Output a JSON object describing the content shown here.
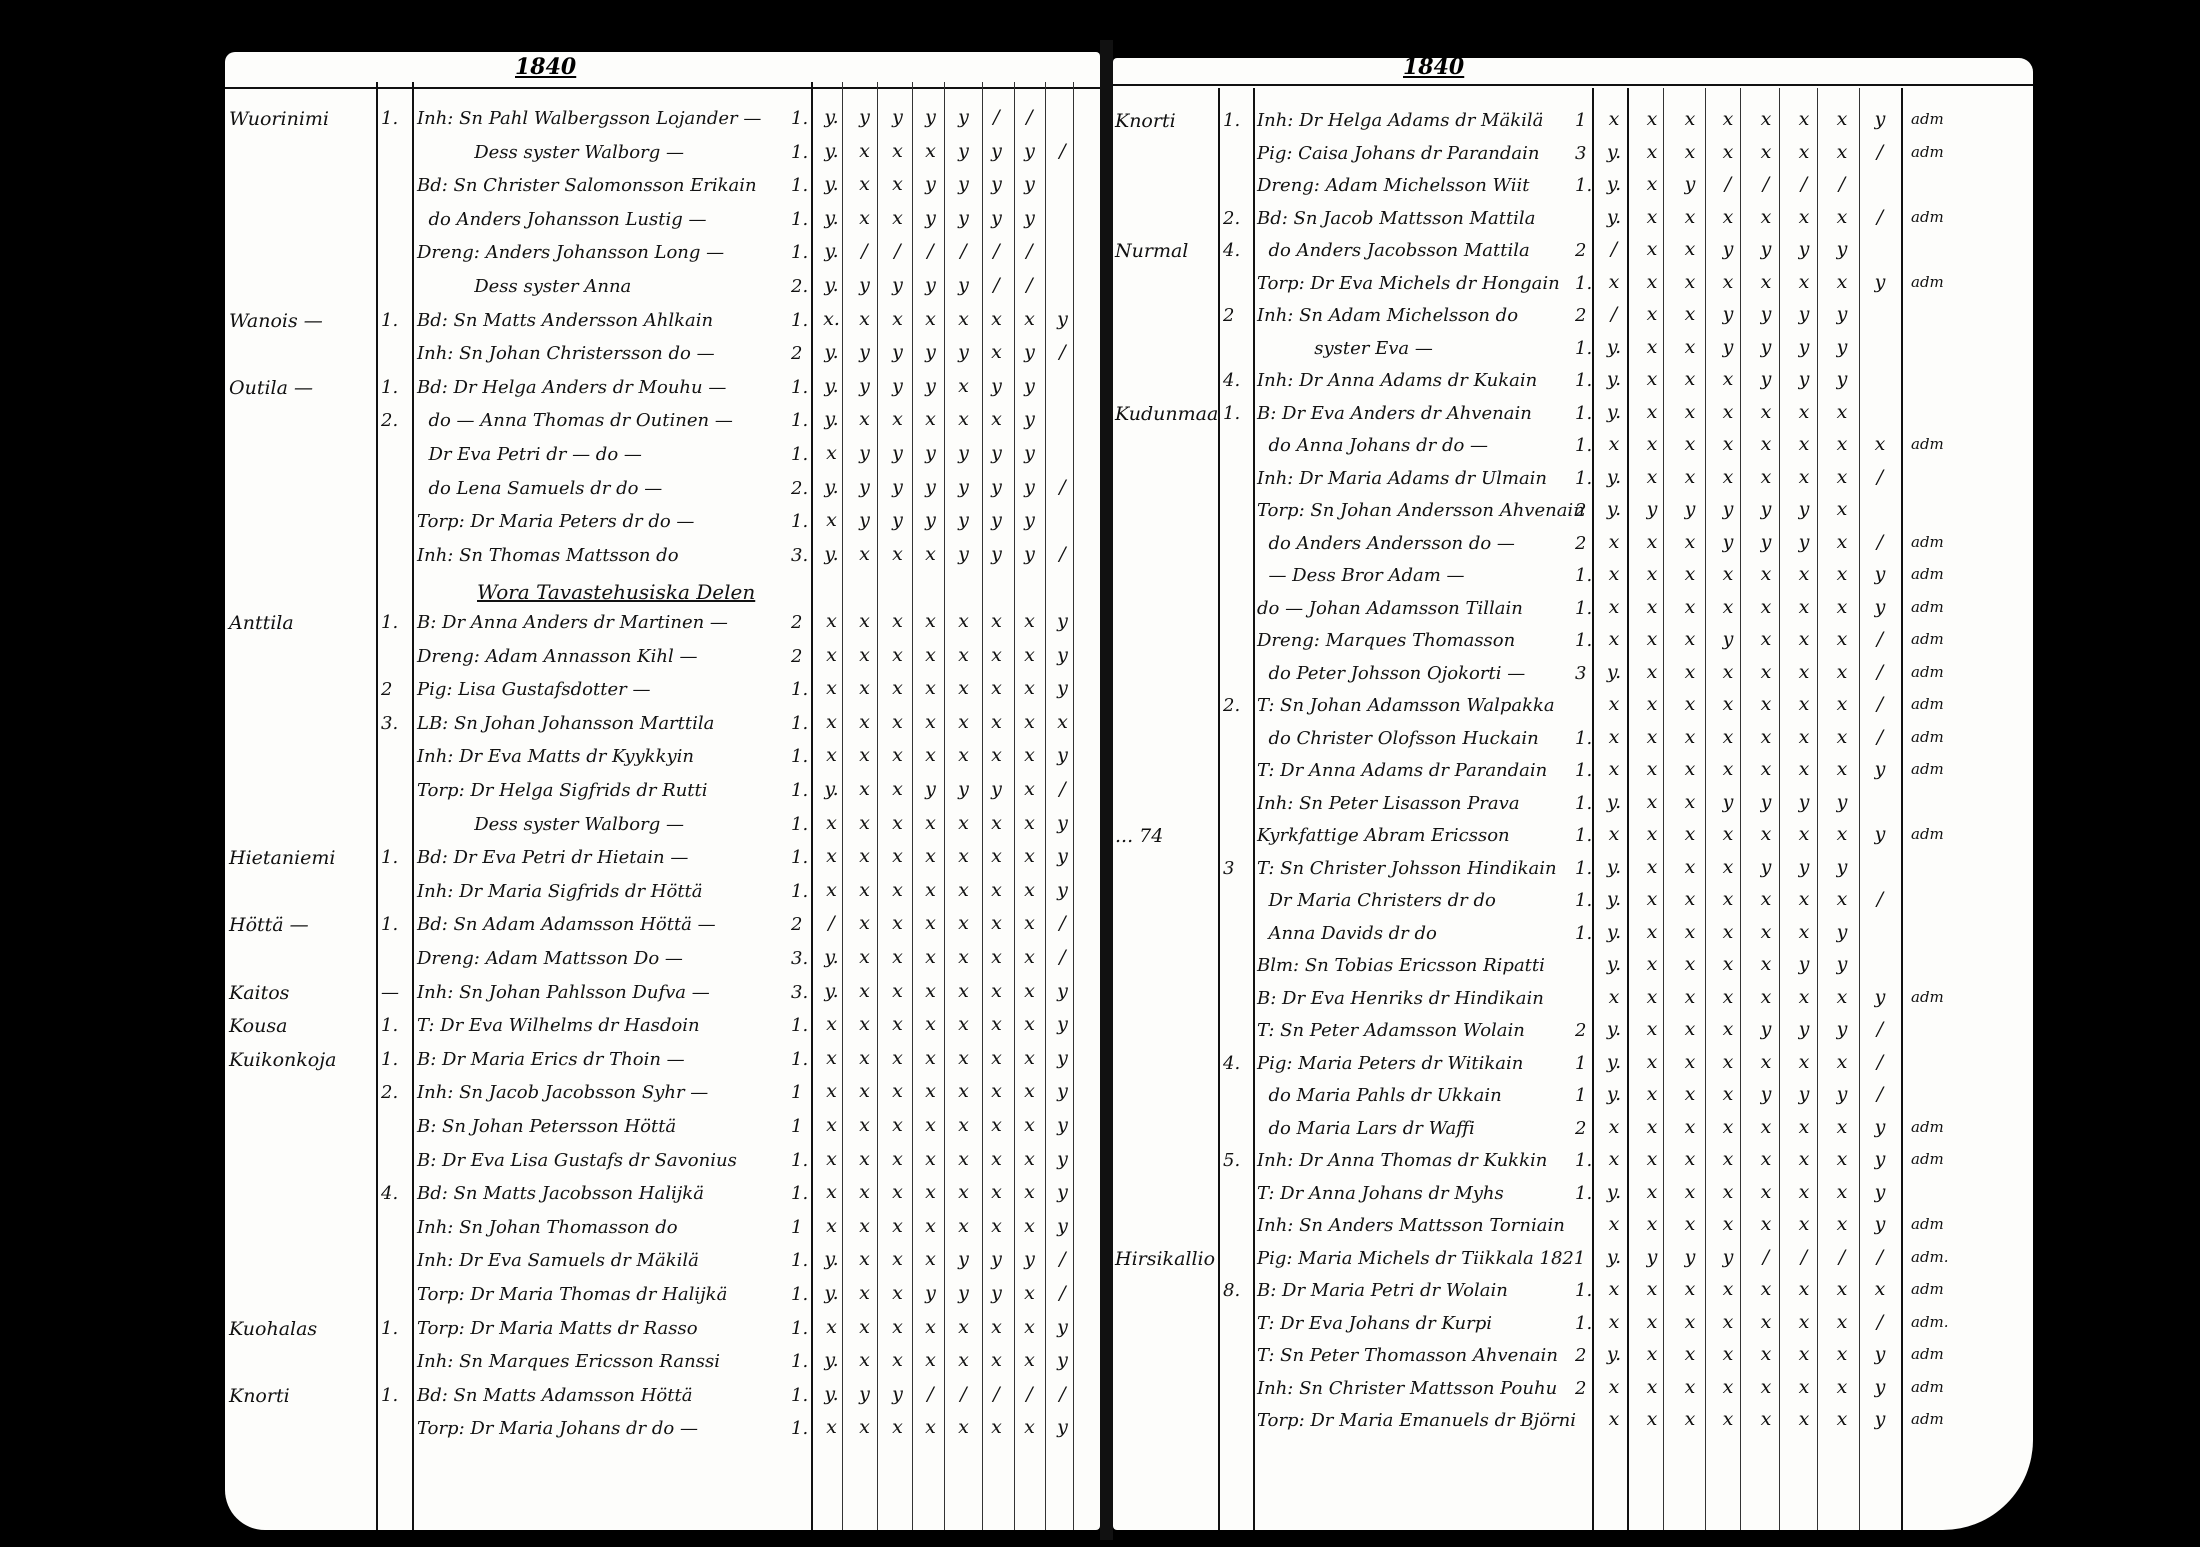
{
  "left_page": {
    "year": "1840",
    "rows": [
      {
        "place": "Wuorinimi",
        "no": "1.",
        "entry": "Inh: Sn Pahl Walbergsson Lojander —",
        "count": "1.",
        "marks": "y. y y y y / /"
      },
      {
        "place": "",
        "no": "",
        "entry": "          Dess syster Walborg —",
        "count": "1.",
        "marks": "y. x x x y y y /"
      },
      {
        "place": "",
        "no": "",
        "entry": "Bd: Sn Christer Salomonsson Erikain",
        "count": "1.",
        "marks": "y. x x y y y y"
      },
      {
        "place": "",
        "no": "",
        "entry": "  do Anders Johansson Lustig —",
        "count": "1.",
        "marks": "y. x x y y y y"
      },
      {
        "place": "",
        "no": "",
        "entry": "Dreng: Anders Johansson Long —",
        "count": "1.",
        "marks": "y. / / / / / /"
      },
      {
        "place": "",
        "no": "",
        "entry": "          Dess syster Anna",
        "count": "2.",
        "marks": "y. y y y y / /"
      },
      {
        "place": "Wanois —",
        "no": "1.",
        "entry": "Bd: Sn Matts Andersson Ahlkain",
        "count": "1.",
        "marks": "x. x x x x x x y"
      },
      {
        "place": "",
        "no": "",
        "entry": "Inh: Sn Johan Christersson do —",
        "count": "2",
        "marks": "y. y y y y x y /"
      },
      {
        "place": "Outila —",
        "no": "1.",
        "entry": "Bd: Dr Helga Anders dr Mouhu —",
        "count": "1.",
        "marks": "y. y y y x y y"
      },
      {
        "place": "",
        "no": "2.",
        "entry": "  do — Anna Thomas dr Outinen —",
        "count": "1.",
        "marks": "y. x x x x x y"
      },
      {
        "place": "",
        "no": "",
        "entry": "  Dr Eva Petri dr — do —",
        "count": "1.",
        "marks": "x y y y y y y"
      },
      {
        "place": "",
        "no": "",
        "entry": "  do Lena Samuels dr do —",
        "count": "2.",
        "marks": "y. y y y y y y /"
      },
      {
        "place": "",
        "no": "",
        "entry": "Torp: Dr Maria Peters dr do —",
        "count": "1.",
        "marks": "x y y y y y y"
      },
      {
        "place": "",
        "no": "",
        "entry": "Inh: Sn Thomas Mattsson do",
        "count": "3.",
        "marks": "y. x x x y y y /"
      },
      {
        "heading": "Wora Tavastehusiska Delen"
      },
      {
        "place": "Anttila",
        "no": "1.",
        "entry": "B: Dr Anna Anders dr Martinen —",
        "count": "2",
        "marks": "x x x x x x x y"
      },
      {
        "place": "",
        "no": "",
        "entry": "Dreng: Adam Annasson Kihl —",
        "count": "2",
        "marks": "x x x x x x x y"
      },
      {
        "place": "",
        "no": "2",
        "entry": "Pig: Lisa Gustafsdotter —",
        "count": "1.",
        "marks": "x x x x x x x y"
      },
      {
        "place": "",
        "no": "3.",
        "entry": "LB: Sn Johan Johansson Marttila",
        "count": "1.",
        "marks": "x x x x x x x x"
      },
      {
        "place": "",
        "no": "",
        "entry": "Inh: Dr Eva Matts dr Kyykkyin",
        "count": "1.",
        "marks": "x x x x x x x y"
      },
      {
        "place": "",
        "no": "",
        "entry": "Torp: Dr Helga Sigfrids dr Rutti",
        "count": "1.",
        "marks": "y. x x y y y x /"
      },
      {
        "place": "",
        "no": "",
        "entry": "          Dess syster Walborg —",
        "count": "1.",
        "marks": "x x x x x x x y"
      },
      {
        "place": "Hietaniemi",
        "no": "1.",
        "entry": "Bd: Dr Eva Petri dr Hietain —",
        "count": "1.",
        "marks": "x x x x x x x y"
      },
      {
        "place": "",
        "no": "",
        "entry": "Inh: Dr Maria Sigfrids dr Höttä",
        "count": "1.",
        "marks": "x x x x x x x y"
      },
      {
        "place": "Höttä —",
        "no": "1.",
        "entry": "Bd: Sn Adam Adamsson Höttä —",
        "count": "2",
        "marks": "/ x x x x x x /"
      },
      {
        "place": "",
        "no": "",
        "entry": "Dreng: Adam Mattsson Do —",
        "count": "3.",
        "marks": "y. x x x x x x /"
      },
      {
        "place": "Kaitos",
        "no": "—",
        "entry": "Inh: Sn Johan Pahlsson Dufva —",
        "count": "3.",
        "marks": "y. x x x x x x y"
      },
      {
        "place": "Kousa",
        "no": "1.",
        "entry": "T: Dr Eva Wilhelms dr Hasdoin",
        "count": "1.",
        "marks": "x x x x x x x y"
      },
      {
        "place": "Kuikonkoja",
        "no": "1.",
        "entry": "B: Dr Maria Erics dr Thoin —",
        "count": "1.",
        "marks": "x x x x x x x y"
      },
      {
        "place": "",
        "no": "2.",
        "entry": "Inh: Sn Jacob Jacobsson Syhr —",
        "count": "1",
        "marks": "x x x x x x x y"
      },
      {
        "place": "",
        "no": "",
        "entry": "B: Sn Johan Petersson Höttä",
        "count": "1",
        "marks": "x x x x x x x y"
      },
      {
        "place": "",
        "no": "",
        "entry": "B: Dr Eva Lisa Gustafs dr Savonius",
        "count": "1.",
        "marks": "x x x x x x x y"
      },
      {
        "place": "",
        "no": "4.",
        "entry": "Bd: Sn Matts Jacobsson Halijkä",
        "count": "1.",
        "marks": "x x x x x x x y"
      },
      {
        "place": "",
        "no": "",
        "entry": "Inh: Sn Johan Thomasson do",
        "count": "1",
        "marks": "x x x x x x x y"
      },
      {
        "place": "",
        "no": "",
        "entry": "Inh: Dr Eva Samuels dr Mäkilä",
        "count": "1.",
        "marks": "y. x x x y y y /"
      },
      {
        "place": "",
        "no": "",
        "entry": "Torp: Dr Maria Thomas dr Halijkä",
        "count": "1.",
        "marks": "y. x x y y y x /"
      },
      {
        "place": "Kuohalas",
        "no": "1.",
        "entry": "Torp: Dr Maria Matts dr Rasso",
        "count": "1.",
        "marks": "x x x x x x x y"
      },
      {
        "place": "",
        "no": "",
        "entry": "Inh: Sn Marques Ericsson Ranssi",
        "count": "1.",
        "marks": "y. x x x x x x y"
      },
      {
        "place": "Knorti",
        "no": "1.",
        "entry": "Bd: Sn Matts Adamsson Höttä",
        "count": "1.",
        "marks": "y. y y / / / / /"
      },
      {
        "place": "",
        "no": "",
        "entry": "Torp: Dr Maria Johans dr do —",
        "count": "1.",
        "marks": "x x x x x x x y"
      }
    ]
  },
  "right_page": {
    "year": "1840",
    "rows": [
      {
        "place": "Knorti",
        "no": "1.",
        "entry": "Inh: Dr Helga Adams dr Mäkilä",
        "count": "1",
        "marks": "x x x x x x x y",
        "note": "adm"
      },
      {
        "place": "",
        "no": "",
        "entry": "Pig: Caisa Johans dr Parandain",
        "count": "3",
        "marks": "y. x x x x x x /",
        "note": "adm"
      },
      {
        "place": "",
        "no": "",
        "entry": "Dreng: Adam Michelsson Wiit",
        "count": "1.",
        "marks": "y. x y / / / /",
        "note": ""
      },
      {
        "place": "",
        "no": "2.",
        "entry": "Bd: Sn Jacob Mattsson Mattila",
        "count": "",
        "marks": "y. x x x x x x /",
        "note": "adm"
      },
      {
        "place": "Nurmal",
        "no": "4.",
        "entry": "  do Anders Jacobsson Mattila",
        "count": "2",
        "marks": "/ x x y y y y",
        "note": ""
      },
      {
        "place": "",
        "no": "",
        "entry": "Torp: Dr Eva Michels dr Hongain",
        "count": "1.",
        "marks": "x x x x x x x y",
        "note": "adm"
      },
      {
        "place": "",
        "no": "2",
        "entry": "Inh: Sn Adam Michelsson do",
        "count": "2",
        "marks": "/ x x y y y y",
        "note": ""
      },
      {
        "place": "",
        "no": "",
        "entry": "          syster Eva —",
        "count": "1.",
        "marks": "y. x x y y y y",
        "note": ""
      },
      {
        "place": "",
        "no": "4.",
        "entry": "Inh: Dr Anna Adams dr Kukain",
        "count": "1.",
        "marks": "y. x x x y y y",
        "note": ""
      },
      {
        "place": "Kudunmaa",
        "no": "1.",
        "entry": "B: Dr Eva Anders dr Ahvenain",
        "count": "1.",
        "marks": "y. x x x x x x",
        "note": ""
      },
      {
        "place": "",
        "no": "",
        "entry": "  do Anna Johans dr do —",
        "count": "1.",
        "marks": "x x x x x x x x",
        "note": "adm"
      },
      {
        "place": "",
        "no": "",
        "entry": "Inh: Dr Maria Adams dr Ulmain",
        "count": "1.",
        "marks": "y. x x x x x x /",
        "note": ""
      },
      {
        "place": "",
        "no": "",
        "entry": "Torp: Sn Johan Andersson Ahvenain",
        "count": "2",
        "marks": "y. y y y y y x",
        "note": ""
      },
      {
        "place": "",
        "no": "",
        "entry": "  do Anders Andersson do —",
        "count": "2",
        "marks": "x x x y y y x /",
        "note": "adm"
      },
      {
        "place": "",
        "no": "",
        "entry": "  — Dess Bror Adam —",
        "count": "1.",
        "marks": "x x x x x x x y",
        "note": "adm"
      },
      {
        "place": "",
        "no": "",
        "entry": "do — Johan Adamsson Tillain",
        "count": "1.",
        "marks": "x x x x x x x y",
        "note": "adm"
      },
      {
        "place": "",
        "no": "",
        "entry": "Dreng: Marques Thomasson",
        "count": "1.",
        "marks": "x x x y x x x /",
        "note": "adm"
      },
      {
        "place": "",
        "no": "",
        "entry": "  do Peter Johsson Ojokorti —",
        "count": "3",
        "marks": "y. x x x x x x /",
        "note": "adm"
      },
      {
        "place": "",
        "no": "2.",
        "entry": "T: Sn Johan Adamsson Walpakka",
        "count": "",
        "marks": "x x x x x x x /",
        "note": "adm"
      },
      {
        "place": "",
        "no": "",
        "entry": "  do Christer Olofsson Huckain",
        "count": "1.",
        "marks": "x x x x x x x /",
        "note": "adm"
      },
      {
        "place": "",
        "no": "",
        "entry": "T: Dr Anna Adams dr Parandain",
        "count": "1.",
        "marks": "x x x x x x x y",
        "note": "adm"
      },
      {
        "place": "",
        "no": "",
        "entry": "Inh: Sn Peter Lisasson Prava",
        "count": "1.",
        "marks": "y. x x y y y y",
        "note": ""
      },
      {
        "place": "... 74",
        "no": "",
        "entry": "Kyrkfattige Abram Ericsson",
        "count": "1.",
        "marks": "x x x x x x x y",
        "note": "adm"
      },
      {
        "place": "",
        "no": "3",
        "entry": "T: Sn Christer Johsson Hindikain",
        "count": "1.",
        "marks": "y. x x x y y y",
        "note": ""
      },
      {
        "place": "",
        "no": "",
        "entry": "  Dr Maria Christers dr do",
        "count": "1.",
        "marks": "y. x x x x x x /",
        "note": ""
      },
      {
        "place": "",
        "no": "",
        "entry": "  Anna Davids dr do",
        "count": "1.",
        "marks": "y. x x x x x y",
        "note": ""
      },
      {
        "place": "",
        "no": "",
        "entry": "Blm: Sn Tobias Ericsson Ripatti",
        "count": "",
        "marks": "y. x x x x y y",
        "note": ""
      },
      {
        "place": "",
        "no": "",
        "entry": "B: Dr Eva Henriks dr Hindikain",
        "count": "",
        "marks": "x x x x x x x y",
        "note": "adm"
      },
      {
        "place": "",
        "no": "",
        "entry": "T: Sn Peter Adamsson Wolain",
        "count": "2",
        "marks": "y. x x x y y y /",
        "note": ""
      },
      {
        "place": "",
        "no": "4.",
        "entry": "Pig: Maria Peters dr Witikain",
        "count": "1",
        "marks": "y. x x x x x x /",
        "note": ""
      },
      {
        "place": "",
        "no": "",
        "entry": "  do Maria Pahls dr Ukkain",
        "count": "1",
        "marks": "y. x x x y y y /",
        "note": ""
      },
      {
        "place": "",
        "no": "",
        "entry": "  do Maria Lars dr Waffi",
        "count": "2",
        "marks": "x x x x x x x y",
        "note": "adm"
      },
      {
        "place": "",
        "no": "5.",
        "entry": "Inh: Dr Anna Thomas dr Kukkin",
        "count": "1.",
        "marks": "x x x x x x x y",
        "note": "adm"
      },
      {
        "place": "",
        "no": "",
        "entry": "T: Dr Anna Johans dr Myhs",
        "count": "1.",
        "marks": "y. x x x x x x y",
        "note": ""
      },
      {
        "place": "",
        "no": "",
        "entry": "Inh: Sn Anders Mattsson Torniain",
        "count": "",
        "marks": "x x x x x x x y",
        "note": "adm"
      },
      {
        "place": "Hirsikallio",
        "no": "",
        "entry": "Pig: Maria Michels dr Tiikkala 1821",
        "count": "",
        "marks": "y. y y y / / / /",
        "note": "adm."
      },
      {
        "place": "",
        "no": "8.",
        "entry": "B: Dr Maria Petri dr Wolain",
        "count": "1.",
        "marks": "x x x x x x x x",
        "note": "adm"
      },
      {
        "place": "",
        "no": "",
        "entry": "T: Dr Eva Johans dr Kurpi",
        "count": "1.",
        "marks": "x x x x x x x /",
        "note": "adm."
      },
      {
        "place": "",
        "no": "",
        "entry": "T: Sn Peter Thomasson Ahvenain",
        "count": "2",
        "marks": "y. x x x x x x y",
        "note": "adm"
      },
      {
        "place": "",
        "no": "",
        "entry": "Inh: Sn Christer Mattsson Pouhu",
        "count": "2",
        "marks": "x x x x x x x y",
        "note": "adm"
      },
      {
        "place": "",
        "no": "",
        "entry": "Torp: Dr Maria Emanuels dr Björni",
        "count": "",
        "marks": "x x x x x x x y",
        "note": "adm"
      }
    ]
  }
}
